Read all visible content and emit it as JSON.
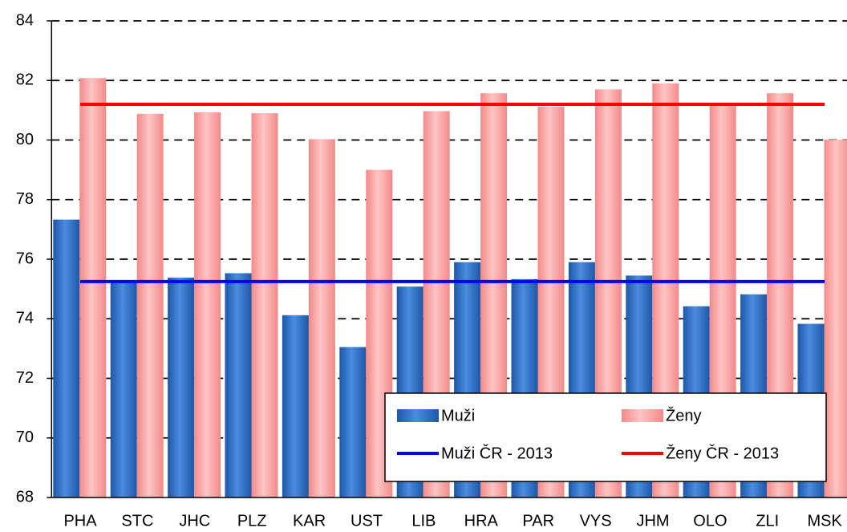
{
  "chart_data": {
    "type": "bar",
    "categories": [
      "PHA",
      "STC",
      "JHC",
      "PLZ",
      "KAR",
      "UST",
      "LIB",
      "HRA",
      "PAR",
      "VYS",
      "JHM",
      "OLO",
      "ZLI",
      "MSK"
    ],
    "series": [
      {
        "name": "Muži",
        "color": "#2e6fc8",
        "values": [
          77.33,
          75.25,
          75.38,
          75.53,
          74.12,
          73.05,
          75.08,
          75.9,
          75.33,
          75.9,
          75.45,
          74.42,
          74.82,
          73.83
        ]
      },
      {
        "name": "Ženy",
        "color": "#f59a9a",
        "values": [
          82.08,
          80.88,
          80.93,
          80.9,
          80.03,
          79.0,
          80.97,
          81.57,
          81.12,
          81.7,
          81.9,
          81.15,
          81.57,
          80.01
        ]
      }
    ],
    "reference_lines": [
      {
        "name": "Muži ČR - 2013",
        "color": "#0000ff",
        "value": 75.25
      },
      {
        "name": "Ženy ČR - 2013",
        "color": "#ff0000",
        "value": 81.2
      }
    ],
    "ylim": [
      68,
      84
    ],
    "yticks": [
      68,
      70,
      72,
      74,
      76,
      78,
      80,
      82,
      84
    ],
    "grid": true
  }
}
